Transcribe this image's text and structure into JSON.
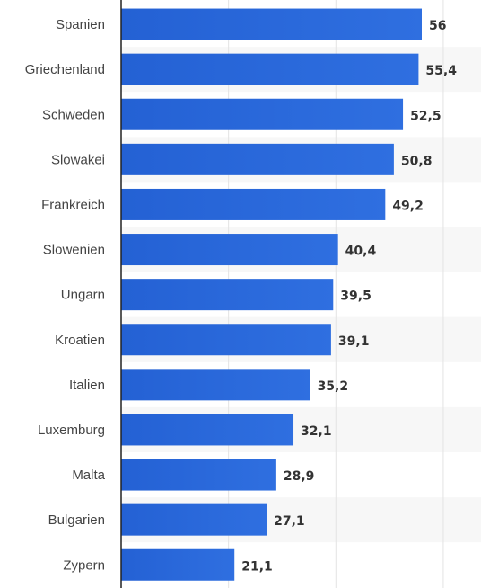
{
  "chart_data": {
    "type": "bar",
    "orientation": "horizontal",
    "categories": [
      "Spanien",
      "Griechenland",
      "Schweden",
      "Slowakei",
      "Frankreich",
      "Slowenien",
      "Ungarn",
      "Kroatien",
      "Italien",
      "Luxemburg",
      "Malta",
      "Bulgarien",
      "Zypern"
    ],
    "value_labels": [
      "56",
      "55,4",
      "52,5",
      "50,8",
      "49,2",
      "40,4",
      "39,5",
      "39,1",
      "35,2",
      "32,1",
      "28,9",
      "27,1",
      "21,1"
    ],
    "values": [
      56,
      55.4,
      52.5,
      50.8,
      49.2,
      40.4,
      39.5,
      39.1,
      35.2,
      32.1,
      28.9,
      27.1,
      21.1
    ],
    "xlim": [
      0,
      60
    ],
    "grid": true,
    "legend": "none",
    "title": "",
    "xlabel": "",
    "ylabel": "",
    "colors": {
      "bar": "#2461d4",
      "bar_light": "#2f6fe0",
      "band": "#f7f7f7",
      "grid": "#e3e3e3",
      "axis": "#222222"
    }
  }
}
